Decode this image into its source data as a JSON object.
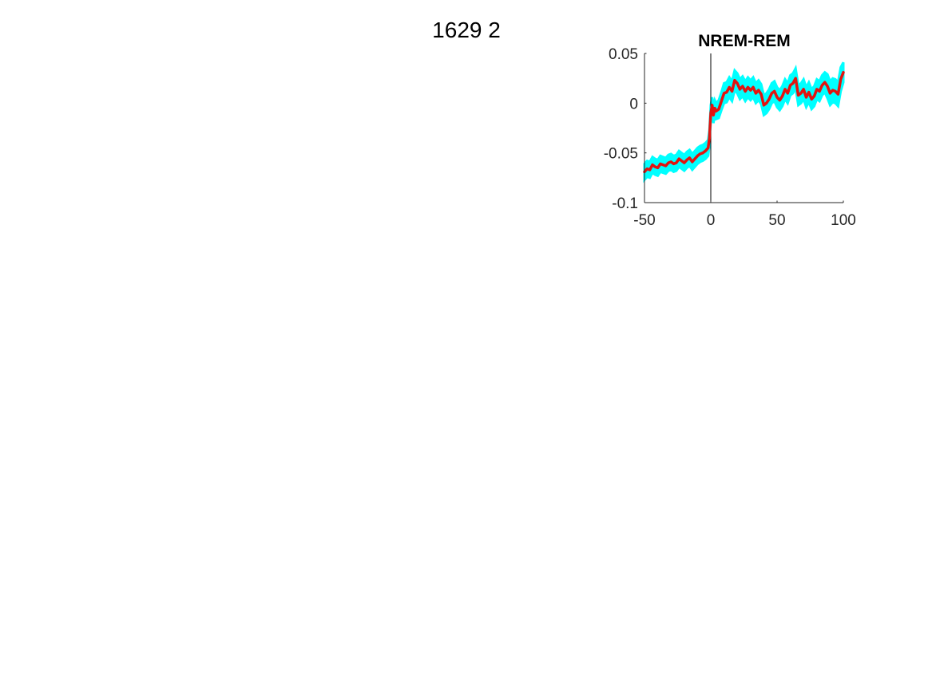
{
  "figure": {
    "title": "1629 2"
  },
  "colors": {
    "mean_line": "#e3130f",
    "error_band": "#00ffff",
    "axis": "#262626",
    "zero_line": "#000000"
  },
  "chart_data": {
    "type": "line",
    "title": "NREM-REM",
    "xlabel": "",
    "ylabel": "",
    "xlim": [
      -50,
      100
    ],
    "ylim": [
      -0.1,
      0.05
    ],
    "xticks": [
      -50,
      0,
      50,
      100
    ],
    "yticks": [
      0.05,
      0,
      -0.05,
      -0.1
    ],
    "xtick_labels": [
      "-50",
      "0",
      "50",
      "100"
    ],
    "ytick_labels": [
      "0.05",
      "0",
      "-0.05",
      "-0.1"
    ],
    "vertical_line_x": 0,
    "grid": false,
    "series": [
      {
        "x": [
          -50,
          -48,
          -46,
          -44,
          -42,
          -40,
          -38,
          -36,
          -34,
          -32,
          -30,
          -28,
          -26,
          -24,
          -22,
          -20,
          -18,
          -16,
          -14,
          -12,
          -10,
          -8,
          -6,
          -4,
          -2,
          -1,
          0,
          1,
          2,
          3,
          4,
          6,
          8,
          10,
          12,
          14,
          16,
          18,
          20,
          22,
          24,
          26,
          28,
          30,
          32,
          34,
          36,
          38,
          40,
          42,
          44,
          46,
          48,
          50,
          52,
          54,
          56,
          58,
          60,
          62,
          64,
          66,
          68,
          70,
          72,
          74,
          76,
          78,
          80,
          82,
          84,
          86,
          88,
          90,
          92,
          94,
          96,
          98,
          100
        ],
        "y": [
          -0.069,
          -0.066,
          -0.067,
          -0.062,
          -0.064,
          -0.065,
          -0.061,
          -0.062,
          -0.063,
          -0.06,
          -0.059,
          -0.061,
          -0.06,
          -0.056,
          -0.058,
          -0.06,
          -0.057,
          -0.055,
          -0.059,
          -0.056,
          -0.053,
          -0.051,
          -0.05,
          -0.048,
          -0.045,
          -0.035,
          -0.01,
          -0.002,
          -0.012,
          -0.005,
          -0.008,
          -0.006,
          0.002,
          0.01,
          0.011,
          0.016,
          0.012,
          0.023,
          0.02,
          0.014,
          0.017,
          0.012,
          0.016,
          0.013,
          0.016,
          0.01,
          0.013,
          0.009,
          -0.002,
          0.0,
          0.004,
          0.01,
          0.012,
          0.006,
          0.003,
          0.007,
          0.014,
          0.01,
          0.018,
          0.02,
          0.025,
          0.008,
          0.01,
          0.014,
          0.006,
          0.011,
          0.004,
          0.007,
          0.014,
          0.012,
          0.018,
          0.021,
          0.017,
          0.01,
          0.013,
          0.012,
          0.009,
          0.024,
          0.031
        ],
        "error": [
          0.008,
          0.008,
          0.008,
          0.008,
          0.008,
          0.008,
          0.008,
          0.008,
          0.008,
          0.008,
          0.008,
          0.008,
          0.008,
          0.008,
          0.008,
          0.008,
          0.008,
          0.008,
          0.008,
          0.008,
          0.008,
          0.008,
          0.008,
          0.008,
          0.008,
          0.008,
          0.008,
          0.008,
          0.008,
          0.008,
          0.008,
          0.009,
          0.009,
          0.01,
          0.01,
          0.01,
          0.01,
          0.01,
          0.01,
          0.01,
          0.01,
          0.01,
          0.01,
          0.01,
          0.01,
          0.01,
          0.01,
          0.01,
          0.01,
          0.01,
          0.01,
          0.01,
          0.01,
          0.01,
          0.01,
          0.01,
          0.01,
          0.01,
          0.01,
          0.01,
          0.01,
          0.01,
          0.01,
          0.01,
          0.01,
          0.01,
          0.01,
          0.01,
          0.01,
          0.01,
          0.01,
          0.01,
          0.012,
          0.012,
          0.012,
          0.012,
          0.012,
          0.012,
          0.01
        ]
      }
    ]
  }
}
